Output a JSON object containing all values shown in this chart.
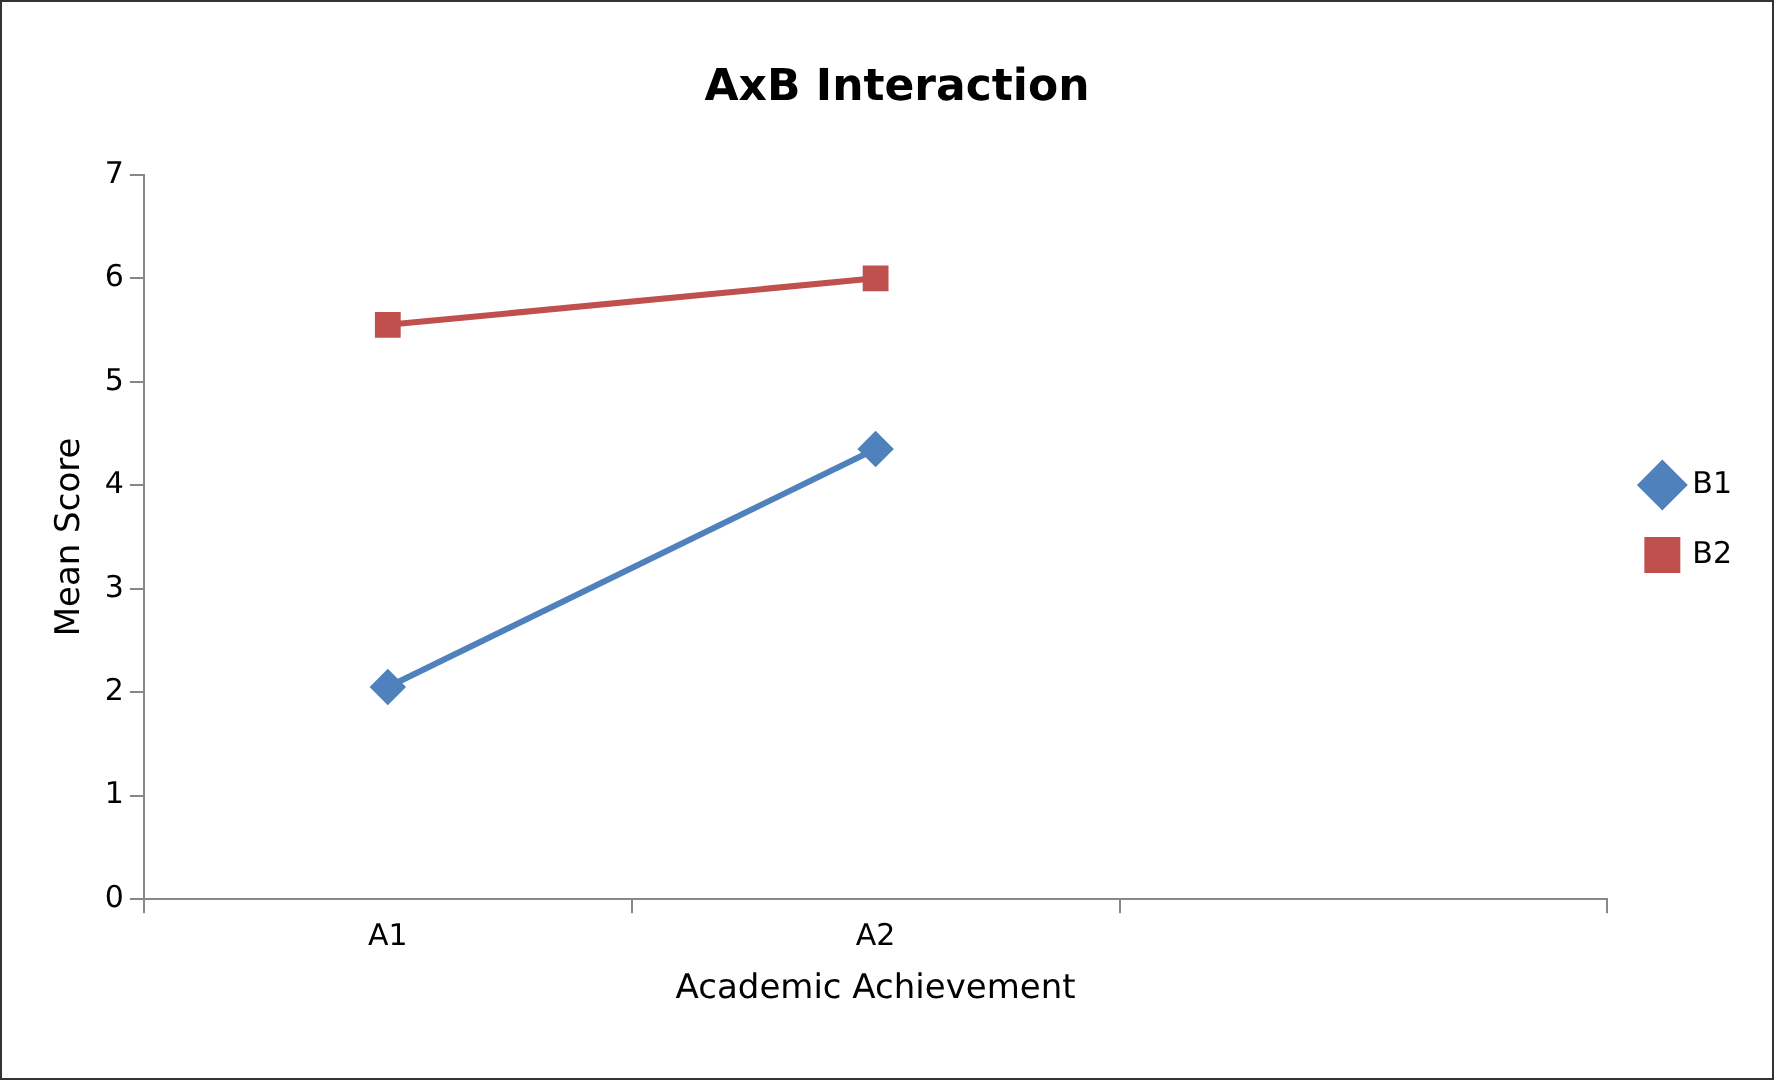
{
  "chart_data": {
    "type": "line",
    "title": "AxB Interaction",
    "xlabel": "Academic Achievement",
    "ylabel": "Mean Score",
    "categories": [
      "A1",
      "A2",
      null
    ],
    "series": [
      {
        "name": "B1",
        "color": "#4f81bd",
        "marker": "diamond",
        "values": [
          2.05,
          4.35,
          null
        ]
      },
      {
        "name": "B2",
        "color": "#c0504d",
        "marker": "square",
        "values": [
          5.55,
          6.0,
          null
        ]
      }
    ],
    "ylim": [
      0,
      7
    ],
    "yticks": [
      0,
      1,
      2,
      3,
      4,
      5,
      6,
      7
    ],
    "grid": false,
    "legend": "right",
    "line_style": "solid"
  }
}
